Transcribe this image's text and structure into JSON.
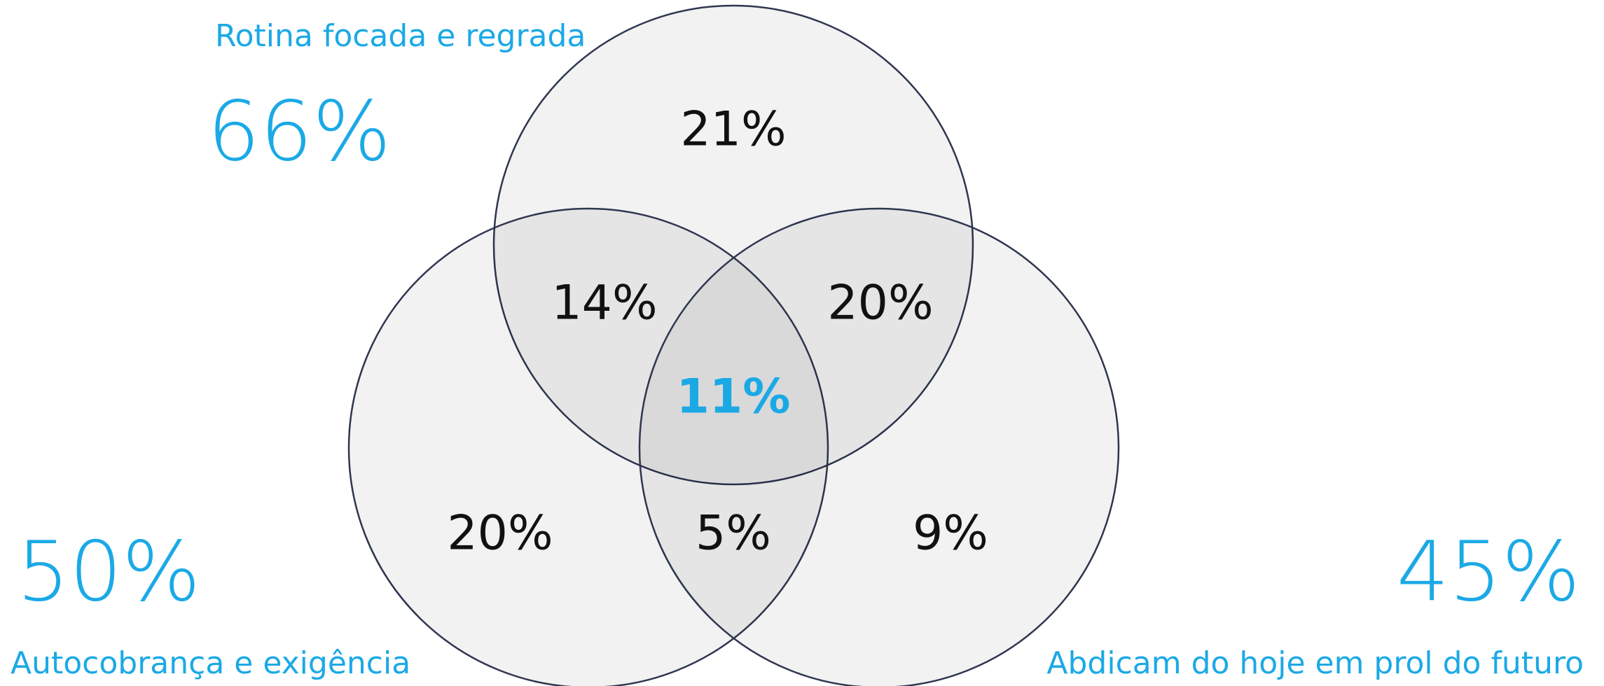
{
  "sets": [
    {
      "label": "Rotina focada e regrada",
      "total": "66%"
    },
    {
      "label": "Autocobrança e exigência",
      "total": "50%"
    },
    {
      "label": "Abdicam do hoje em prol do futuro",
      "total": "45%"
    }
  ],
  "regions": [
    {
      "sets": "top",
      "label": "21%"
    },
    {
      "sets": "top-left",
      "label": "14%"
    },
    {
      "sets": "top-right",
      "label": "20%"
    },
    {
      "sets": "all",
      "label": "11%"
    },
    {
      "sets": "left",
      "label": "20%"
    },
    {
      "sets": "left-right",
      "label": "5%"
    },
    {
      "sets": "right",
      "label": "9%"
    }
  ]
}
